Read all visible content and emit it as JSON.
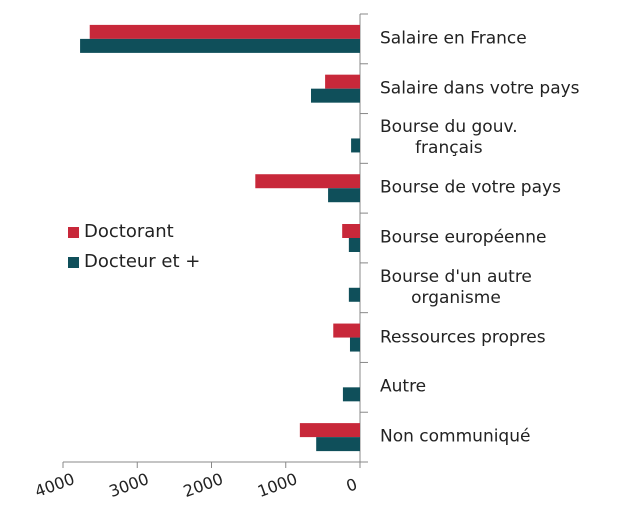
{
  "chart_data": {
    "type": "bar",
    "orientation": "horizontal",
    "x_reversed": true,
    "categories": [
      "Salaire en France",
      "Salaire dans votre pays",
      "Bourse du gouv.\nfrançais",
      "Bourse de votre pays",
      "Bourse européenne",
      "Bourse d'un autre\norganisme",
      "Ressources propres",
      "Autre",
      "Non communiqué"
    ],
    "series": [
      {
        "name": "Doctorant",
        "color": "#c8283a",
        "values": [
          3640,
          470,
          0,
          1410,
          240,
          0,
          360,
          0,
          810
        ]
      },
      {
        "name": "Docteur et +",
        "color": "#0f4f5a",
        "values": [
          3770,
          660,
          120,
          430,
          150,
          150,
          135,
          230,
          590
        ]
      }
    ],
    "xlim": [
      0,
      4000
    ],
    "xticks": [
      0,
      1000,
      2000,
      3000,
      4000
    ],
    "legend": "left"
  }
}
